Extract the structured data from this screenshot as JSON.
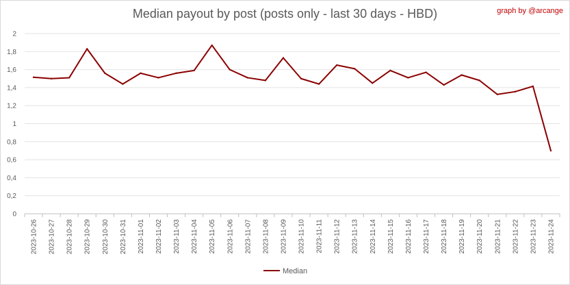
{
  "chart_data": {
    "type": "line",
    "title": "Median payout by post (posts only - last 30 days - HBD)",
    "credit": "graph by @arcange",
    "xlabel": "",
    "ylabel": "",
    "ylim": [
      0,
      2
    ],
    "yticks": [
      "0",
      "0,2",
      "0,4",
      "0,6",
      "0,8",
      "1",
      "1,2",
      "1,4",
      "1,6",
      "1,8",
      "2"
    ],
    "ytick_values": [
      0,
      0.2,
      0.4,
      0.6,
      0.8,
      1.0,
      1.2,
      1.4,
      1.6,
      1.8,
      2.0
    ],
    "grid": true,
    "legend_position": "bottom",
    "categories": [
      "2023-10-26",
      "2023-10-27",
      "2023-10-28",
      "2023-10-29",
      "2023-10-30",
      "2023-10-31",
      "2023-11-01",
      "2023-11-02",
      "2023-11-03",
      "2023-11-04",
      "2023-11-05",
      "2023-11-06",
      "2023-11-07",
      "2023-11-08",
      "2023-11-09",
      "2023-11-10",
      "2023-11-11",
      "2023-11-12",
      "2023-11-13",
      "2023-11-14",
      "2023-11-15",
      "2023-11-16",
      "2023-11-17",
      "2023-11-18",
      "2023-11-19",
      "2023-11-20",
      "2023-11-21",
      "2023-11-22",
      "2023-11-23",
      "2023-11-24"
    ],
    "series": [
      {
        "name": "Median",
        "color": "#8b0000",
        "values": [
          1.515,
          1.5,
          1.51,
          1.83,
          1.56,
          1.44,
          1.56,
          1.51,
          1.56,
          1.59,
          1.87,
          1.6,
          1.51,
          1.48,
          1.73,
          1.5,
          1.44,
          1.65,
          1.61,
          1.45,
          1.59,
          1.51,
          1.57,
          1.43,
          1.54,
          1.48,
          1.325,
          1.355,
          1.415,
          0.7
        ]
      }
    ]
  }
}
